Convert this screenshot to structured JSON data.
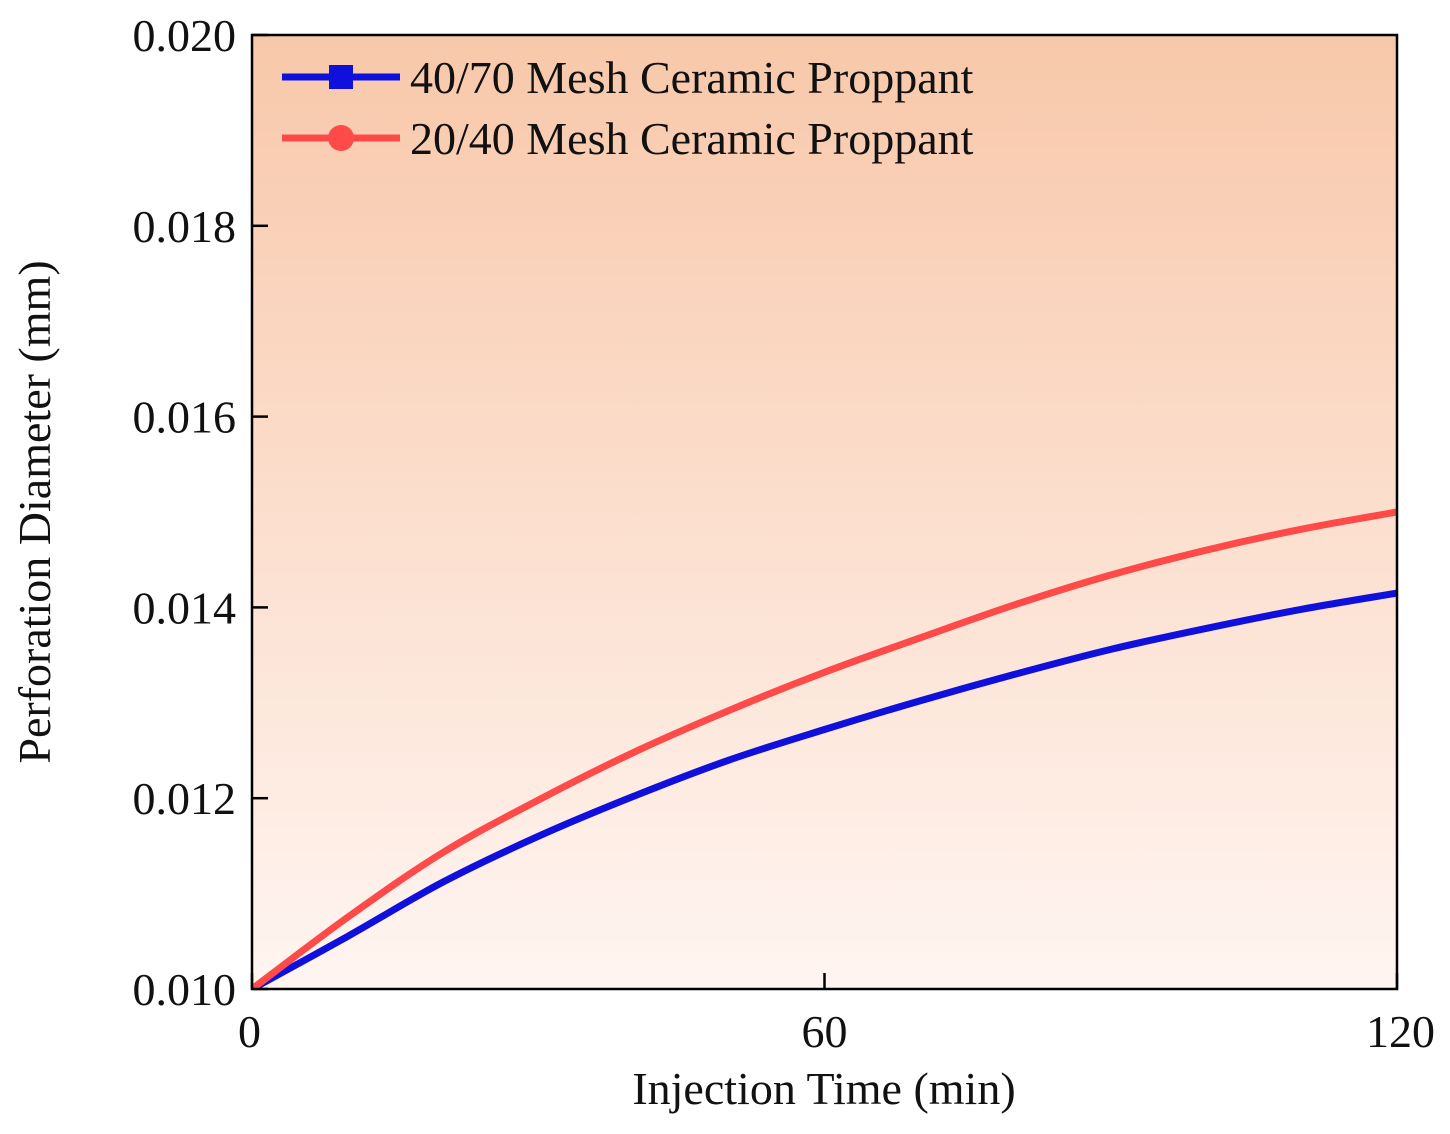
{
  "chart_data": {
    "type": "line",
    "title": "",
    "xlabel": "Injection Time (min)",
    "ylabel": "Perforation Diameter (mm)",
    "xlim": [
      0,
      120
    ],
    "ylim": [
      0.01,
      0.02
    ],
    "xticks": [
      0,
      60,
      120
    ],
    "xtick_labels": [
      "0",
      "60",
      "120"
    ],
    "yticks": [
      0.01,
      0.012,
      0.014,
      0.016,
      0.018,
      0.02
    ],
    "ytick_labels": [
      "0.010",
      "0.012",
      "0.014",
      "0.016",
      "0.018",
      "0.020"
    ],
    "grid": false,
    "legend_position": "top-left",
    "background": {
      "top_color": "#f8c8aa",
      "bottom_color": "#fff5f1"
    },
    "x": [
      0,
      10,
      20,
      30,
      40,
      50,
      60,
      70,
      80,
      90,
      100,
      110,
      120
    ],
    "series": [
      {
        "name": "40/70 Mesh Ceramic Proppant",
        "color": "#1010dd",
        "marker": "square",
        "values": [
          0.01,
          0.01055,
          0.01112,
          0.0116,
          0.01202,
          0.0124,
          0.01272,
          0.01302,
          0.0133,
          0.01356,
          0.01378,
          0.01398,
          0.01415
        ]
      },
      {
        "name": "20/40 Mesh Ceramic Proppant",
        "color": "#ff4a4a",
        "marker": "circle",
        "values": [
          0.01,
          0.01075,
          0.01143,
          0.01198,
          0.01248,
          0.01292,
          0.01332,
          0.01368,
          0.01403,
          0.01434,
          0.0146,
          0.01482,
          0.015
        ]
      }
    ]
  }
}
